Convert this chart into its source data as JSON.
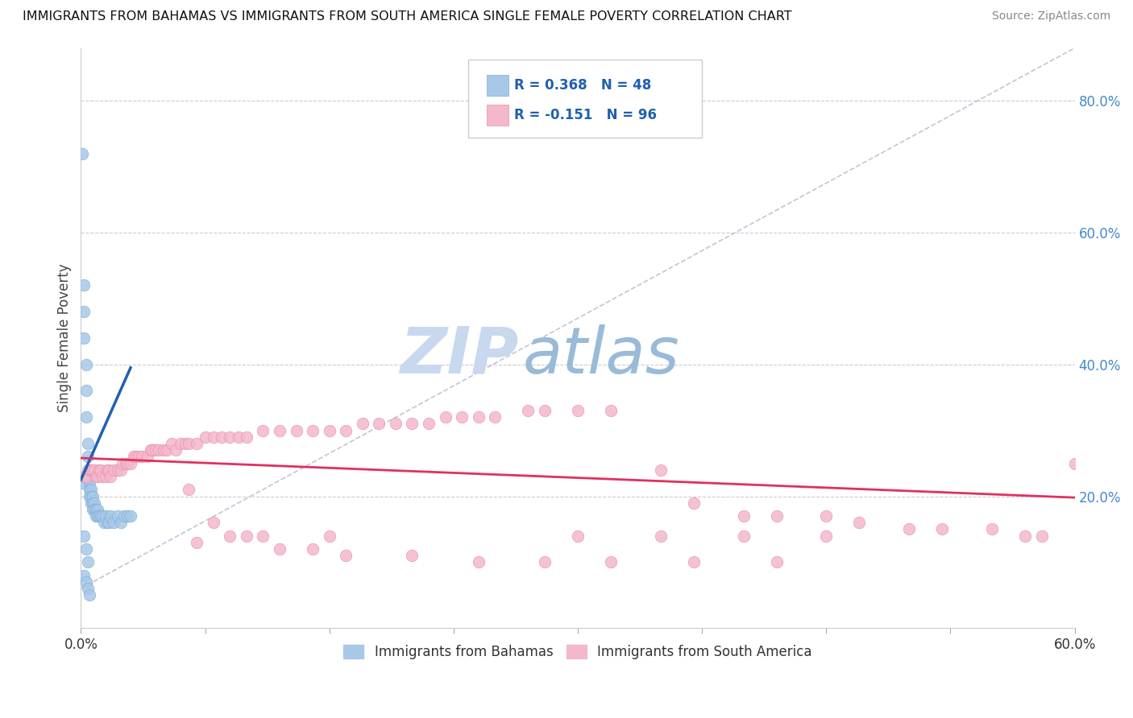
{
  "title": "IMMIGRANTS FROM BAHAMAS VS IMMIGRANTS FROM SOUTH AMERICA SINGLE FEMALE POVERTY CORRELATION CHART",
  "source": "Source: ZipAtlas.com",
  "ylabel": "Single Female Poverty",
  "xlim": [
    0.0,
    0.6
  ],
  "ylim": [
    0.0,
    0.88
  ],
  "yticks": [
    0.2,
    0.4,
    0.6,
    0.8
  ],
  "ytick_labels": [
    "20.0%",
    "40.0%",
    "60.0%",
    "80.0%"
  ],
  "xticks": [
    0.0,
    0.075,
    0.15,
    0.225,
    0.3,
    0.375,
    0.45,
    0.525,
    0.6
  ],
  "blue_color": "#a8c8e8",
  "blue_edge_color": "#7bafd4",
  "pink_color": "#f4b8cc",
  "pink_edge_color": "#e890aa",
  "blue_line_color": "#2060b0",
  "pink_line_color": "#e03060",
  "legend_text_color": "#2060b0",
  "watermark_zip_color": "#c8d8ee",
  "watermark_atlas_color": "#99bbd8",
  "background_color": "#ffffff",
  "blue_scatter_x": [
    0.001,
    0.001,
    0.002,
    0.002,
    0.002,
    0.003,
    0.003,
    0.003,
    0.004,
    0.004,
    0.004,
    0.005,
    0.005,
    0.005,
    0.005,
    0.006,
    0.006,
    0.006,
    0.007,
    0.007,
    0.007,
    0.008,
    0.008,
    0.009,
    0.009,
    0.01,
    0.01,
    0.011,
    0.012,
    0.013,
    0.014,
    0.015,
    0.016,
    0.017,
    0.018,
    0.02,
    0.022,
    0.024,
    0.026,
    0.028,
    0.03,
    0.002,
    0.003,
    0.004,
    0.002,
    0.003,
    0.004,
    0.005
  ],
  "blue_scatter_y": [
    0.72,
    0.22,
    0.52,
    0.48,
    0.44,
    0.4,
    0.36,
    0.32,
    0.28,
    0.26,
    0.24,
    0.23,
    0.22,
    0.21,
    0.2,
    0.21,
    0.2,
    0.19,
    0.2,
    0.19,
    0.18,
    0.19,
    0.18,
    0.18,
    0.17,
    0.18,
    0.17,
    0.17,
    0.17,
    0.17,
    0.16,
    0.17,
    0.16,
    0.16,
    0.17,
    0.16,
    0.17,
    0.16,
    0.17,
    0.17,
    0.17,
    0.14,
    0.12,
    0.1,
    0.08,
    0.07,
    0.06,
    0.05
  ],
  "pink_scatter_x": [
    0.002,
    0.003,
    0.005,
    0.006,
    0.007,
    0.008,
    0.009,
    0.01,
    0.011,
    0.012,
    0.013,
    0.015,
    0.016,
    0.017,
    0.018,
    0.02,
    0.022,
    0.024,
    0.025,
    0.027,
    0.028,
    0.03,
    0.032,
    0.033,
    0.035,
    0.037,
    0.04,
    0.042,
    0.043,
    0.045,
    0.047,
    0.05,
    0.052,
    0.055,
    0.057,
    0.06,
    0.063,
    0.065,
    0.07,
    0.075,
    0.08,
    0.085,
    0.09,
    0.095,
    0.1,
    0.11,
    0.12,
    0.13,
    0.14,
    0.15,
    0.16,
    0.17,
    0.18,
    0.19,
    0.2,
    0.21,
    0.22,
    0.23,
    0.24,
    0.25,
    0.27,
    0.28,
    0.3,
    0.32,
    0.35,
    0.37,
    0.4,
    0.42,
    0.45,
    0.47,
    0.5,
    0.52,
    0.55,
    0.57,
    0.58,
    0.6,
    0.065,
    0.08,
    0.1,
    0.12,
    0.14,
    0.16,
    0.2,
    0.24,
    0.28,
    0.32,
    0.37,
    0.42,
    0.07,
    0.09,
    0.11,
    0.15,
    0.3,
    0.35,
    0.4,
    0.45
  ],
  "pink_scatter_y": [
    0.23,
    0.23,
    0.24,
    0.24,
    0.24,
    0.24,
    0.23,
    0.23,
    0.24,
    0.24,
    0.23,
    0.23,
    0.24,
    0.24,
    0.23,
    0.24,
    0.24,
    0.24,
    0.25,
    0.25,
    0.25,
    0.25,
    0.26,
    0.26,
    0.26,
    0.26,
    0.26,
    0.27,
    0.27,
    0.27,
    0.27,
    0.27,
    0.27,
    0.28,
    0.27,
    0.28,
    0.28,
    0.28,
    0.28,
    0.29,
    0.29,
    0.29,
    0.29,
    0.29,
    0.29,
    0.3,
    0.3,
    0.3,
    0.3,
    0.3,
    0.3,
    0.31,
    0.31,
    0.31,
    0.31,
    0.31,
    0.32,
    0.32,
    0.32,
    0.32,
    0.33,
    0.33,
    0.33,
    0.33,
    0.24,
    0.19,
    0.17,
    0.17,
    0.17,
    0.16,
    0.15,
    0.15,
    0.15,
    0.14,
    0.14,
    0.25,
    0.21,
    0.16,
    0.14,
    0.12,
    0.12,
    0.11,
    0.11,
    0.1,
    0.1,
    0.1,
    0.1,
    0.1,
    0.13,
    0.14,
    0.14,
    0.14,
    0.14,
    0.14,
    0.14,
    0.14
  ],
  "blue_line_x": [
    0.0,
    0.03
  ],
  "blue_line_y": [
    0.225,
    0.395
  ],
  "pink_line_x": [
    0.0,
    0.6
  ],
  "pink_line_y": [
    0.258,
    0.198
  ],
  "ref_line_x": [
    0.0,
    0.6
  ],
  "ref_line_y": [
    0.06,
    0.88
  ]
}
